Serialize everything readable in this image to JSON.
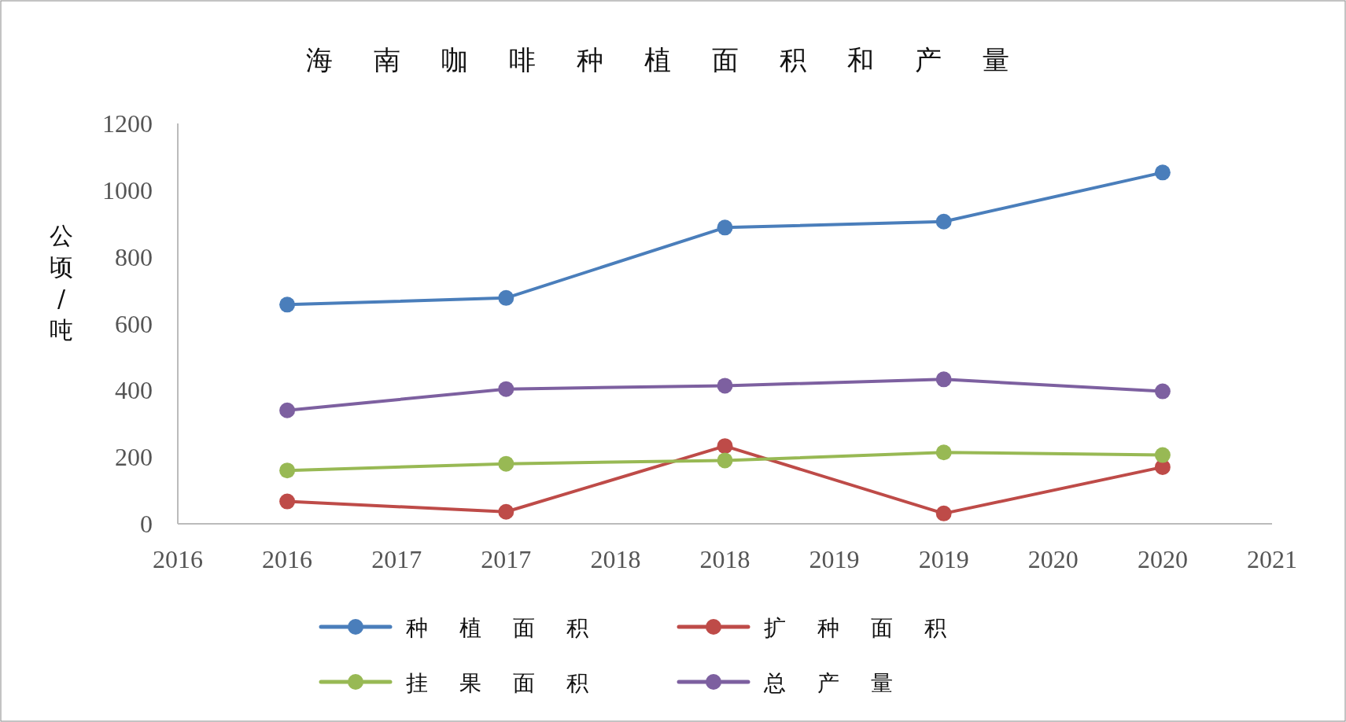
{
  "chart_data": {
    "type": "line",
    "title": "海南咖啡种植面积和产量",
    "ylabel": "公顷/吨",
    "x": [
      2016.5,
      2017.5,
      2018.5,
      2019.5,
      2020.5
    ],
    "xlim": [
      2016,
      2021
    ],
    "xticks": [
      2016,
      {
        "value": 2016.5,
        "label": "2016"
      },
      2017,
      {
        "value": 2017.5,
        "label": "2017"
      },
      2018,
      {
        "value": 2018.5,
        "label": "2018"
      },
      2019,
      {
        "value": 2019.5,
        "label": "2019"
      },
      2020,
      {
        "value": 2020.5,
        "label": "2020"
      },
      2021
    ],
    "ylim": [
      0,
      1200
    ],
    "yticks": [
      0,
      200,
      400,
      600,
      800,
      1000,
      1200
    ],
    "grid": false,
    "legend": "bottom",
    "marker": "circle",
    "line_style": "solid",
    "series": [
      {
        "name": "种植面积",
        "color": "#4a7ebb",
        "values": [
          657,
          677,
          888,
          906,
          1053
        ]
      },
      {
        "name": "扩种面积",
        "color": "#be4b48",
        "values": [
          67,
          36,
          233,
          31,
          170
        ]
      },
      {
        "name": "挂果面积",
        "color": "#98b954",
        "values": [
          160,
          180,
          190,
          214,
          206
        ]
      },
      {
        "name": "总产量",
        "color": "#7d60a0",
        "values": [
          340,
          404,
          414,
          433,
          397
        ]
      }
    ]
  }
}
